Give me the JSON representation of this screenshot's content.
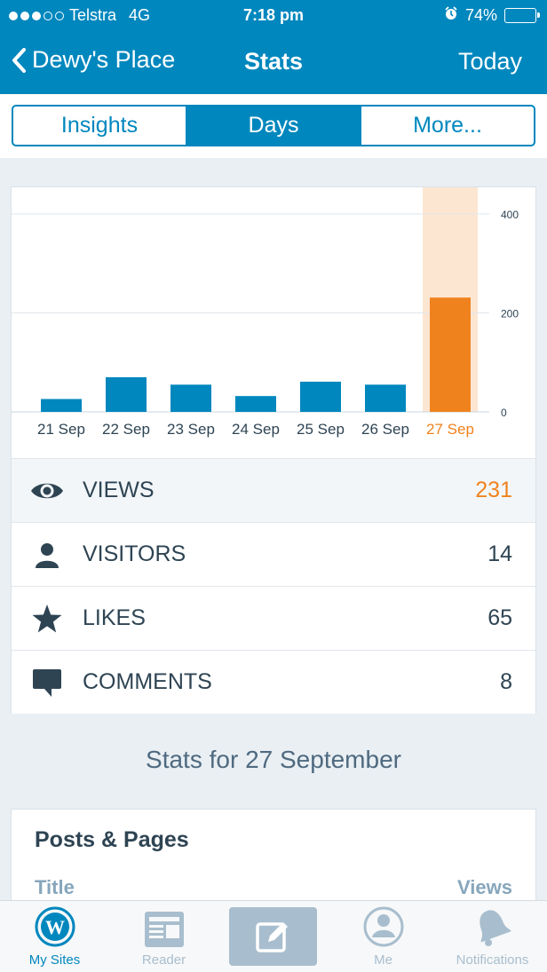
{
  "status_bar": {
    "carrier": "Telstra",
    "network": "4G",
    "time": "7:18 pm",
    "battery": "74%",
    "battery_level": 0.74,
    "signal_bars_filled": 3,
    "signal_bars_total": 5
  },
  "nav": {
    "back_label": "Dewy's Place",
    "title": "Stats",
    "right_label": "Today"
  },
  "segments": [
    {
      "label": "Insights",
      "active": false
    },
    {
      "label": "Days",
      "active": true
    },
    {
      "label": "More...",
      "active": false
    }
  ],
  "chart_data": {
    "type": "bar",
    "categories": [
      "21 Sep",
      "22 Sep",
      "23 Sep",
      "24 Sep",
      "25 Sep",
      "26 Sep",
      "27 Sep"
    ],
    "values": [
      26,
      70,
      55,
      32,
      61,
      55,
      231
    ],
    "highlight_index": 6,
    "ylim": [
      0,
      400
    ],
    "yticks": [
      0,
      200,
      400
    ],
    "grid": true,
    "colors": {
      "bar": "#0087be",
      "highlight_bar": "#f0821e",
      "highlight_band": "#fce6d2",
      "grid": "#e1e7ec"
    }
  },
  "stats": [
    {
      "label": "VIEWS",
      "value": "231",
      "icon": "eye-icon",
      "selected": true
    },
    {
      "label": "VISITORS",
      "value": "14",
      "icon": "person-icon",
      "selected": false
    },
    {
      "label": "LIKES",
      "value": "65",
      "icon": "star-icon",
      "selected": false
    },
    {
      "label": "COMMENTS",
      "value": "8",
      "icon": "comment-icon",
      "selected": false
    }
  ],
  "stats_for_heading": "Stats for 27 September",
  "posts_pages": {
    "title": "Posts & Pages",
    "col_title": "Title",
    "col_views": "Views"
  },
  "tabbar": {
    "tabs": [
      {
        "label": "My Sites",
        "icon": "wordpress-icon",
        "active": true
      },
      {
        "label": "Reader",
        "icon": "reader-icon",
        "active": false
      },
      {
        "label": "",
        "icon": "write-icon",
        "active": false
      },
      {
        "label": "Me",
        "icon": "me-icon",
        "active": false
      },
      {
        "label": "Notifications",
        "icon": "bell-icon",
        "active": false
      }
    ]
  },
  "colors": {
    "brand": "#0087be",
    "highlight": "#f0821e",
    "background": "#e9eff3"
  }
}
